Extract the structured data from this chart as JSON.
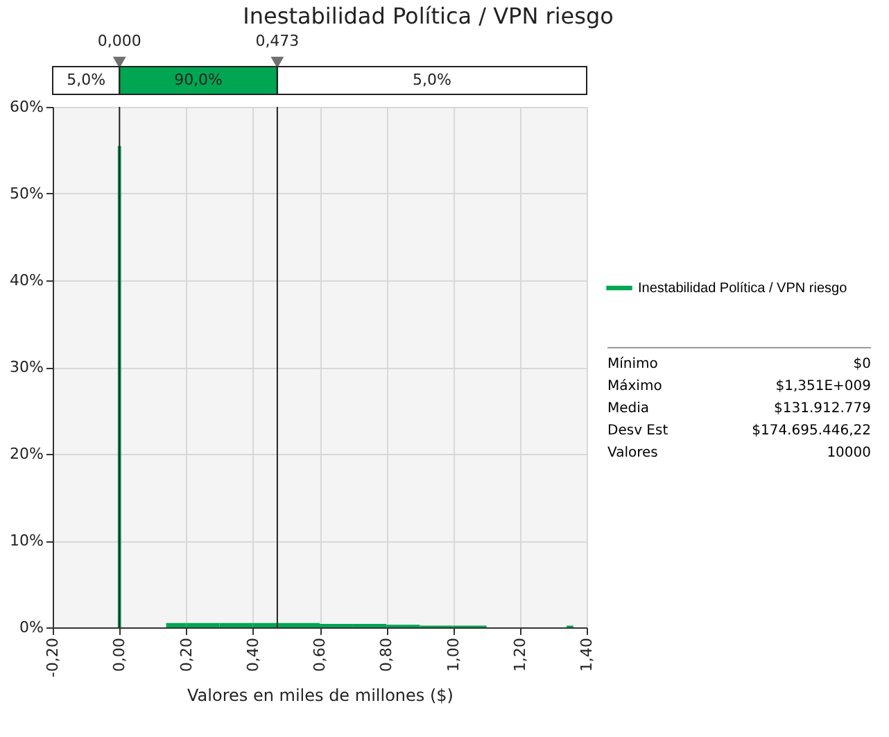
{
  "chart_data": {
    "type": "histogram",
    "title": "Inestabilidad Política / VPN riesgo",
    "xlabel": "Valores en miles de millones ($)",
    "bins": [
      -0.005,
      0.005,
      0.14,
      0.2,
      0.3,
      0.4,
      0.473,
      0.6,
      0.7,
      0.8,
      0.9,
      1.0,
      1.1,
      1.34,
      1.36
    ],
    "series": [
      {
        "name": "Inestabilidad Política / VPN riesgo",
        "color": "#00a651",
        "values": [
          55.5,
          0,
          0.5,
          0.5,
          0.5,
          0.5,
          0.5,
          0.4,
          0.4,
          0.3,
          0.2,
          0.2,
          0,
          0.2
        ]
      }
    ],
    "xlim": [
      -0.2,
      1.4
    ],
    "xticks": [
      {
        "value": -0.2,
        "label": "-0,20"
      },
      {
        "value": 0,
        "label": "0,00"
      },
      {
        "value": 0.2,
        "label": "0,20"
      },
      {
        "value": 0.4,
        "label": "0,40"
      },
      {
        "value": 0.6,
        "label": "0,60"
      },
      {
        "value": 0.8,
        "label": "0,80"
      },
      {
        "value": 1.0,
        "label": "1,00"
      },
      {
        "value": 1.2,
        "label": "1,20"
      },
      {
        "value": 1.4,
        "label": "1,40"
      }
    ],
    "ylim": [
      0,
      60
    ],
    "yticks": [
      {
        "value": 0,
        "label": "0%"
      },
      {
        "value": 10,
        "label": "10%"
      },
      {
        "value": 20,
        "label": "20%"
      },
      {
        "value": 30,
        "label": "30%"
      },
      {
        "value": 40,
        "label": "40%"
      },
      {
        "value": 50,
        "label": "50%"
      },
      {
        "value": 60,
        "label": "60%"
      }
    ],
    "grid": true,
    "legend": "right",
    "ref_lines": [
      {
        "axis": "x",
        "value": 0,
        "label": "0,000"
      },
      {
        "axis": "x",
        "value": 0.473,
        "label": "0,473"
      }
    ],
    "annotations": [
      "5,0%",
      "90,0%",
      "5,0%",
      "Mínimo",
      "$0",
      "Máximo",
      "$1,351E+009",
      "Media",
      "$131.912.779",
      "Desv Est",
      "$174.695.446,22",
      "Valores",
      "10000"
    ]
  }
}
